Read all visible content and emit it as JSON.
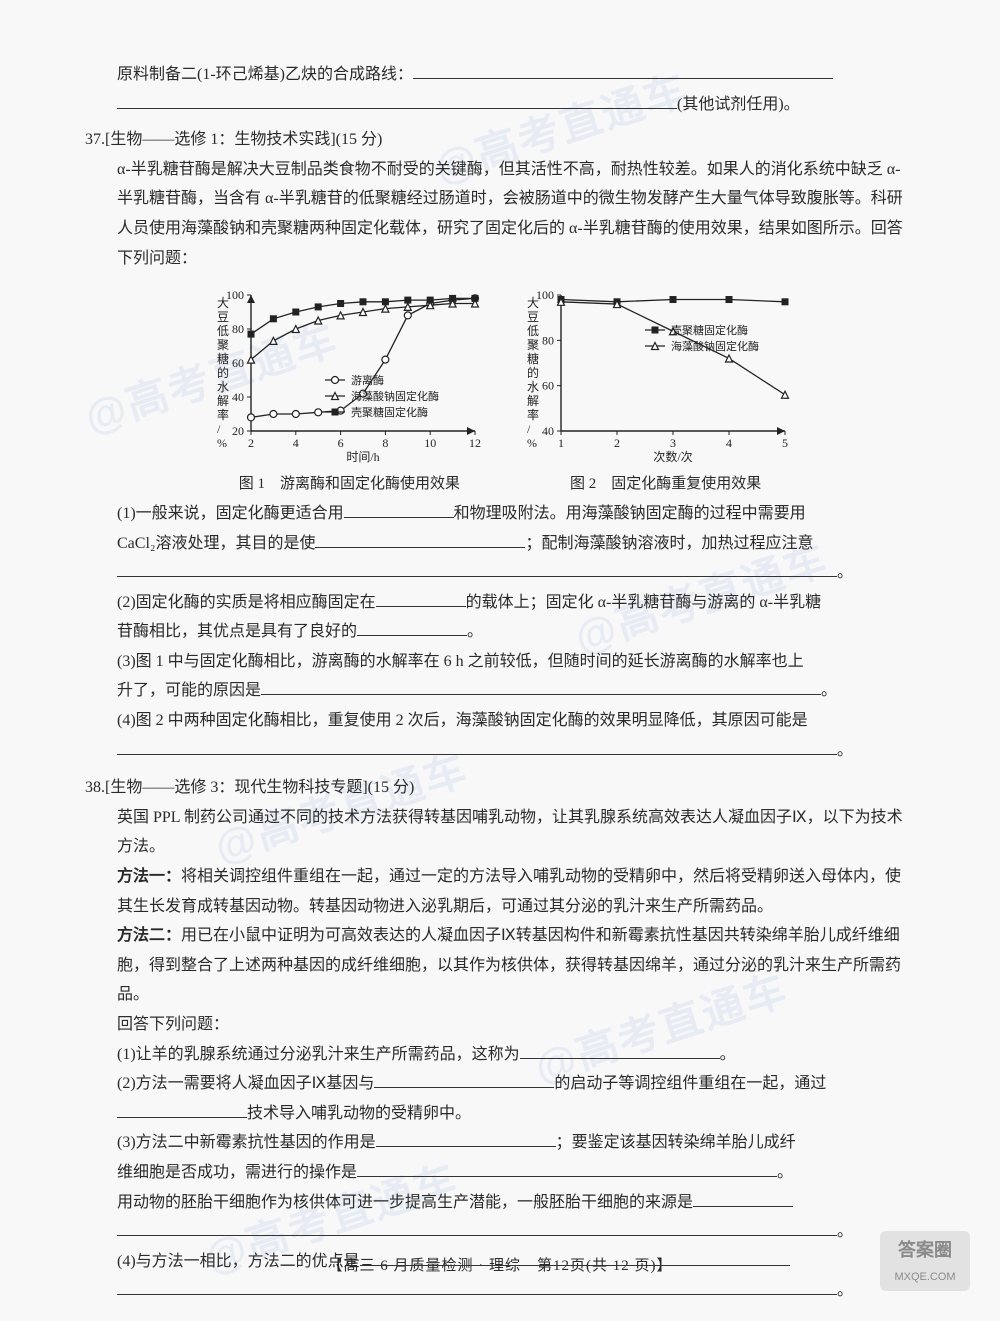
{
  "page": {
    "footer": "【高三 6 月质量检测 · 理综　第12页(共 12 页)】"
  },
  "intro_line1": "原料制备二(1-环己烯基)乙炔的合成路线：",
  "intro_tail": "(其他试剂任用)。",
  "q37": {
    "num": "37.",
    "title": "[生物——选修 1：生物技术实践](15 分)",
    "stem": "α-半乳糖苷酶是解决大豆制品类食物不耐受的关键酶，但其活性不高，耐热性较差。如果人的消化系统中缺乏 α-半乳糖苷酶，当含有 α-半乳糖苷的低聚糖经过肠道时，会被肠道中的微生物发酵产生大量气体导致腹胀等。科研人员使用海藻酸钠和壳聚糖两种固定化载体，研究了固定化后的 α-半乳糖苷酶的使用效果，结果如图所示。回答下列问题：",
    "chart1": {
      "title": "图 1　游离酶和固定化酶使用效果",
      "ylabel": "大豆低聚糖的水解率/%",
      "xlabel": "时间/h",
      "ylim": [
        20,
        100
      ],
      "ytick_step": 20,
      "xlim": [
        2,
        12
      ],
      "xtick_step": 2,
      "series": [
        {
          "name": "游离酶",
          "marker": "circle",
          "color": "#222222",
          "x": [
            2,
            3,
            4,
            5,
            6,
            7,
            8,
            9,
            10,
            11,
            12
          ],
          "y": [
            28,
            30,
            30,
            31,
            32,
            42,
            62,
            88,
            95,
            97,
            98
          ]
        },
        {
          "name": "海藻酸钠固定化酶",
          "marker": "triangle",
          "color": "#222222",
          "x": [
            2,
            3,
            4,
            5,
            6,
            7,
            8,
            9,
            10,
            11,
            12
          ],
          "y": [
            62,
            73,
            80,
            85,
            88,
            90,
            92,
            93,
            94,
            95,
            95
          ]
        },
        {
          "name": "壳聚糖固定化酶",
          "marker": "square-filled",
          "color": "#222222",
          "x": [
            2,
            3,
            4,
            5,
            6,
            7,
            8,
            9,
            10,
            11,
            12
          ],
          "y": [
            77,
            86,
            90,
            93,
            95,
            96,
            96,
            97,
            97,
            98,
            98
          ]
        }
      ],
      "background": "#f8f8f8",
      "axis_color": "#222222",
      "fontsize": 12
    },
    "chart2": {
      "title": "图 2　固定化酶重复使用效果",
      "ylabel": "大豆低聚糖的水解率/%",
      "xlabel": "次数/次",
      "ylim": [
        40,
        100
      ],
      "ytick_step": 20,
      "xlim": [
        1,
        5
      ],
      "xtick_step": 1,
      "series": [
        {
          "name": "壳聚糖固定化酶",
          "marker": "square-filled",
          "color": "#222222",
          "x": [
            1,
            2,
            3,
            4,
            5
          ],
          "y": [
            98,
            97,
            98,
            98,
            97
          ]
        },
        {
          "name": "海藻酸钠固定化酶",
          "marker": "triangle",
          "color": "#222222",
          "x": [
            1,
            2,
            3,
            4,
            5
          ],
          "y": [
            97,
            96,
            84,
            72,
            56
          ]
        }
      ],
      "background": "#f8f8f8",
      "axis_color": "#222222",
      "fontsize": 12
    },
    "s1a": "(1)一般来说，固定化酶更适合用",
    "s1b": "和物理吸附法。用海藻酸钠固定酶的过程中需要用",
    "s1c": "CaCl₂溶液处理，其目的是使",
    "s1d": "；配制海藻酸钠溶液时，加热过程应注意",
    "s2a": "(2)固定化酶的实质是将相应酶固定在",
    "s2b": "的载体上；固定化 α-半乳糖苷酶与游离的 α-半乳糖",
    "s2c": "苷酶相比，其优点是具有了良好的",
    "s2d": "。",
    "s3a": "(3)图 1 中与固定化酶相比，游离酶的水解率在 6 h 之前较低，但随时间的延长游离酶的水解率也上",
    "s3b": "升了，可能的原因是",
    "s3c": "。",
    "s4a": "(4)图 2 中两种固定化酶相比，重复使用 2 次后，海藻酸钠固定化酶的效果明显降低，其原因可能是",
    "s4b": "。"
  },
  "q38": {
    "num": "38.",
    "title": "[生物——选修 3：现代生物科技专题](15 分)",
    "stem": "英国 PPL 制药公司通过不同的技术方法获得转基因哺乳动物，让其乳腺系统高效表达人凝血因子Ⅸ，以下为技术方法。",
    "m1_label": "方法一：",
    "m1": "将相关调控组件重组在一起，通过一定的方法导入哺乳动物的受精卵中，然后将受精卵送入母体内，使其生长发育成转基因动物。转基因动物进入泌乳期后，可通过其分泌的乳汁来生产所需药品。",
    "m2_label": "方法二：",
    "m2": "用已在小鼠中证明为可高效表达的人凝血因子Ⅸ转基因构件和新霉素抗性基因共转染绵羊胎儿成纤维细胞，得到整合了上述两种基因的成纤维细胞，以其作为核供体，获得转基因绵羊，通过分泌的乳汁来生产所需药品。",
    "answer_prompt": "回答下列问题：",
    "s1": "(1)让羊的乳腺系统通过分泌乳汁来生产所需药品，这称为",
    "s1_tail": "。",
    "s2a": "(2)方法一需要将人凝血因子Ⅸ基因与",
    "s2b": "的启动子等调控组件重组在一起，通过",
    "s2c": "技术导入哺乳动物的受精卵中。",
    "s3a": "(3)方法二中新霉素抗性基因的作用是",
    "s3b": "；要鉴定该基因转染绵羊胎儿成纤",
    "s3c": "维细胞是否成功，需进行的操作是",
    "s3d": "。",
    "s3e": "用动物的胚胎干细胞作为核供体可进一步提高生产潜能，一般胚胎干细胞的来源是",
    "s3f": "。",
    "s4a": "(4)与方法一相比，方法二的优点是",
    "s4b": "。"
  },
  "watermarks": [
    "@高考直通车",
    "@高考直通车",
    "@高考直通车",
    "@高考直通车",
    "@高考直通车",
    "@高考直通车"
  ],
  "logo": {
    "top": "答案圈",
    "bottom": "MXQE.COM"
  }
}
